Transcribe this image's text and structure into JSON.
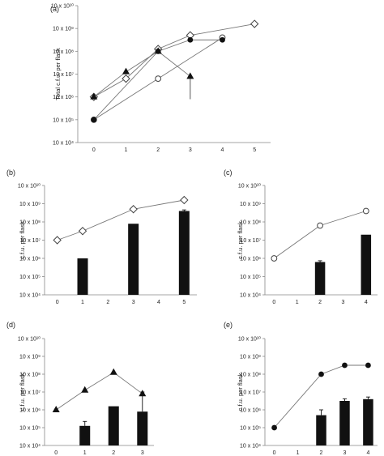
{
  "chart_data": [
    {
      "panel": "(a)",
      "type": "line",
      "ylabel": "Total c.f.u. per flask",
      "scale": "log",
      "ylim_exp": [
        4,
        10
      ],
      "y_ticks": [
        "10 x 10⁴",
        "10 x 10⁵",
        "10 x 10⁶",
        "10 x 10⁷",
        "10 x 10⁸",
        "10 x 10⁹",
        "10 x 10¹⁰"
      ],
      "x_ticks": [
        "0",
        "1",
        "2",
        "3",
        "4",
        "5"
      ],
      "xlim": [
        -0.5,
        5.5
      ],
      "series": [
        {
          "marker": "diamond",
          "points": [
            [
              0,
              6.0
            ],
            [
              1,
              6.8
            ],
            [
              2,
              8.1
            ],
            [
              3,
              8.7
            ],
            [
              5,
              9.2
            ]
          ]
        },
        {
          "marker": "circle-open",
          "points": [
            [
              0,
              5.0
            ],
            [
              2,
              6.8
            ],
            [
              4,
              8.6
            ]
          ]
        },
        {
          "marker": "triangle",
          "error_bar": [
            3,
            5.9
          ],
          "points": [
            [
              0,
              6.0
            ],
            [
              1,
              7.1
            ],
            [
              2,
              8.0
            ],
            [
              3,
              6.9
            ]
          ]
        },
        {
          "marker": "circle-filled",
          "points": [
            [
              0,
              5.0
            ],
            [
              2,
              8.0
            ],
            [
              3,
              8.5
            ],
            [
              4,
              8.5
            ]
          ]
        }
      ]
    },
    {
      "panel": "(b)",
      "type": "bar",
      "ylabel": "c.f.u. per flask",
      "scale": "log",
      "ylim_exp": [
        4,
        10
      ],
      "y_ticks": [
        "10 x 10⁴",
        "10 x 10⁵",
        "10 x 10⁶",
        "10 x 10⁷",
        "10 x 10⁸",
        "10 x 10⁹",
        "10 x 10¹⁰"
      ],
      "x_ticks": [
        "0",
        "1",
        "2",
        "3",
        "4",
        "5"
      ],
      "xlim": [
        -0.5,
        5.5
      ],
      "bars": [
        {
          "x": 1,
          "v": 6.0
        },
        {
          "x": 3,
          "v": 7.9
        },
        {
          "x": 5,
          "v": 8.6,
          "err": 0.06
        }
      ],
      "line": {
        "marker": "diamond",
        "points": [
          [
            0,
            7.0
          ],
          [
            1,
            7.5
          ],
          [
            3,
            8.7
          ],
          [
            5,
            9.2
          ]
        ]
      }
    },
    {
      "panel": "(c)",
      "type": "bar",
      "ylabel": "c.f.u. per flask",
      "scale": "log",
      "ylim_exp": [
        4,
        10
      ],
      "y_ticks": [
        "10 x 10⁴",
        "10 x 10⁵",
        "10 x 10⁶",
        "10 x 10⁷",
        "10 x 10⁸",
        "10 x 10⁹",
        "10 x 10¹⁰"
      ],
      "x_ticks": [
        "0",
        "1",
        "2",
        "3",
        "4"
      ],
      "xlim": [
        -0.4,
        4.5
      ],
      "bars": [
        {
          "x": 2,
          "v": 5.8,
          "err": 0.07
        },
        {
          "x": 4,
          "v": 7.3
        }
      ],
      "line": {
        "marker": "circle-open",
        "points": [
          [
            0,
            6.0
          ],
          [
            2,
            7.8
          ],
          [
            4,
            8.6
          ]
        ]
      }
    },
    {
      "panel": "(d)",
      "type": "bar",
      "ylabel": "c.f.u. per flask",
      "scale": "log",
      "ylim_exp": [
        4,
        10
      ],
      "y_ticks": [
        "10 x 10⁴",
        "10 x 10⁵",
        "10 x 10⁶",
        "10 x 10⁷",
        "10 x 10⁸",
        "10 x 10⁹",
        "10 x 10¹⁰"
      ],
      "x_ticks": [
        "0",
        "1",
        "2",
        "3"
      ],
      "xlim": [
        -0.4,
        3.4
      ],
      "bars": [
        {
          "x": 1,
          "v": 5.1,
          "err": 0.25
        },
        {
          "x": 2,
          "v": 6.2
        },
        {
          "x": 3,
          "v": 5.9,
          "err": 1.1
        }
      ],
      "line": {
        "marker": "triangle",
        "points": [
          [
            0,
            6.0
          ],
          [
            1,
            7.1
          ],
          [
            2,
            8.1
          ],
          [
            3,
            6.9
          ]
        ]
      }
    },
    {
      "panel": "(e)",
      "type": "bar",
      "ylabel": "c.f.u. per flask",
      "scale": "log",
      "ylim_exp": [
        4,
        10
      ],
      "y_ticks": [
        "10 x 10⁴",
        "10 x 10⁵",
        "10 x 10⁶",
        "10 x 10⁷",
        "10 x 10⁸",
        "10 x 10⁹",
        "10 x 10¹⁰"
      ],
      "x_ticks": [
        "0",
        "1",
        "2",
        "3",
        "4"
      ],
      "xlim": [
        -0.4,
        4.4
      ],
      "bars": [
        {
          "x": 2,
          "v": 5.7,
          "err": 0.3
        },
        {
          "x": 3,
          "v": 6.5,
          "err": 0.12
        },
        {
          "x": 4,
          "v": 6.6,
          "err": 0.12
        }
      ],
      "line": {
        "marker": "circle-filled",
        "points": [
          [
            0,
            5.0
          ],
          [
            2,
            8.0
          ],
          [
            3,
            8.5
          ],
          [
            4,
            8.5
          ]
        ]
      }
    }
  ]
}
